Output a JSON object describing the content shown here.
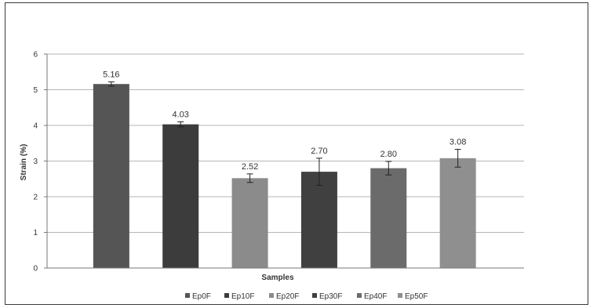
{
  "chart_data": {
    "type": "bar",
    "title": "",
    "xlabel": "Samples",
    "ylabel": "Strain (%)",
    "ylim": [
      0,
      6
    ],
    "yticks": [
      0,
      1,
      2,
      3,
      4,
      5,
      6
    ],
    "grid": "horizontal",
    "legend_position": "bottom",
    "categories": [
      "Ep0F",
      "Ep10F",
      "Ep20F",
      "Ep30F",
      "Ep40F",
      "Ep50F"
    ],
    "values": [
      5.16,
      4.03,
      2.52,
      2.7,
      2.8,
      3.08
    ],
    "data_labels": [
      "5.16",
      "4.03",
      "2.52",
      "2.70",
      "2.80",
      "3.08"
    ],
    "error": [
      0.06,
      0.07,
      0.12,
      0.38,
      0.19,
      0.25
    ],
    "colors": [
      "#555555",
      "#3c3c3c",
      "#8b8b8b",
      "#404040",
      "#6b6b6b",
      "#8f8f8f"
    ]
  }
}
